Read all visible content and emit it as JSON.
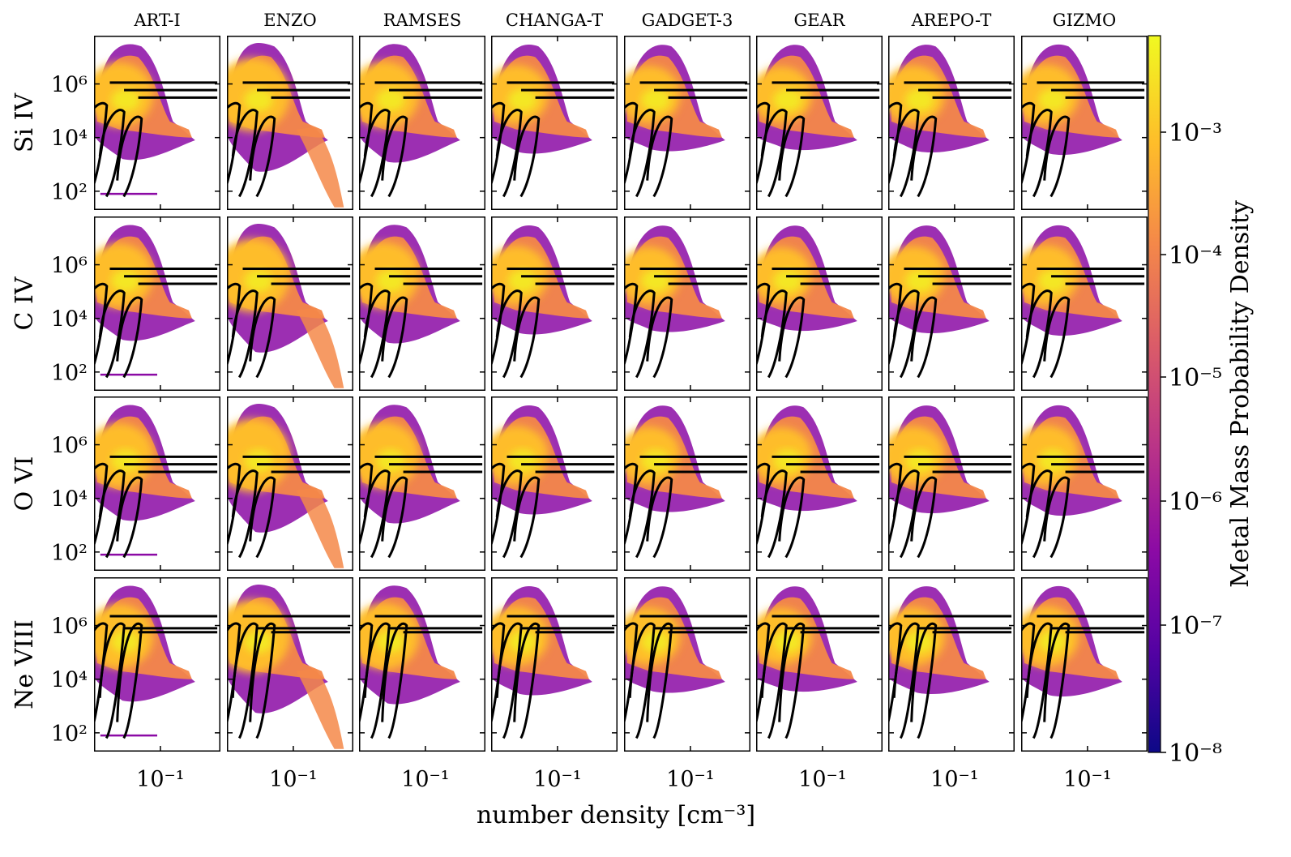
{
  "chart_data": {
    "type": "heatmap",
    "title": "",
    "xlabel": "number density [cm⁻³]",
    "ylabel": "",
    "x_scale": "log",
    "y_scale": "log",
    "x_tick_labels": [
      "10⁻¹"
    ],
    "y_tick_labels": [
      "10²",
      "10⁴",
      "10⁶"
    ],
    "columns": [
      "ART-I",
      "ENZO",
      "RAMSES",
      "CHANGA-T",
      "GADGET-3",
      "GEAR",
      "AREPO-T",
      "GIZMO"
    ],
    "rows": [
      "Si IV",
      "C IV",
      "O VI",
      "Ne VIII"
    ],
    "colorbar": {
      "label": "Metal Mass Probability Density",
      "scale": "log",
      "tick_labels": [
        "10⁻⁸",
        "10⁻⁷",
        "10⁻⁶",
        "10⁻⁵",
        "10⁻⁴",
        "10⁻³"
      ],
      "colormap": [
        "#0d0887",
        "#5302a3",
        "#8b0aa5",
        "#b83289",
        "#db5c68",
        "#f48849",
        "#febd2a",
        "#f0f921"
      ]
    },
    "grid": false
  }
}
